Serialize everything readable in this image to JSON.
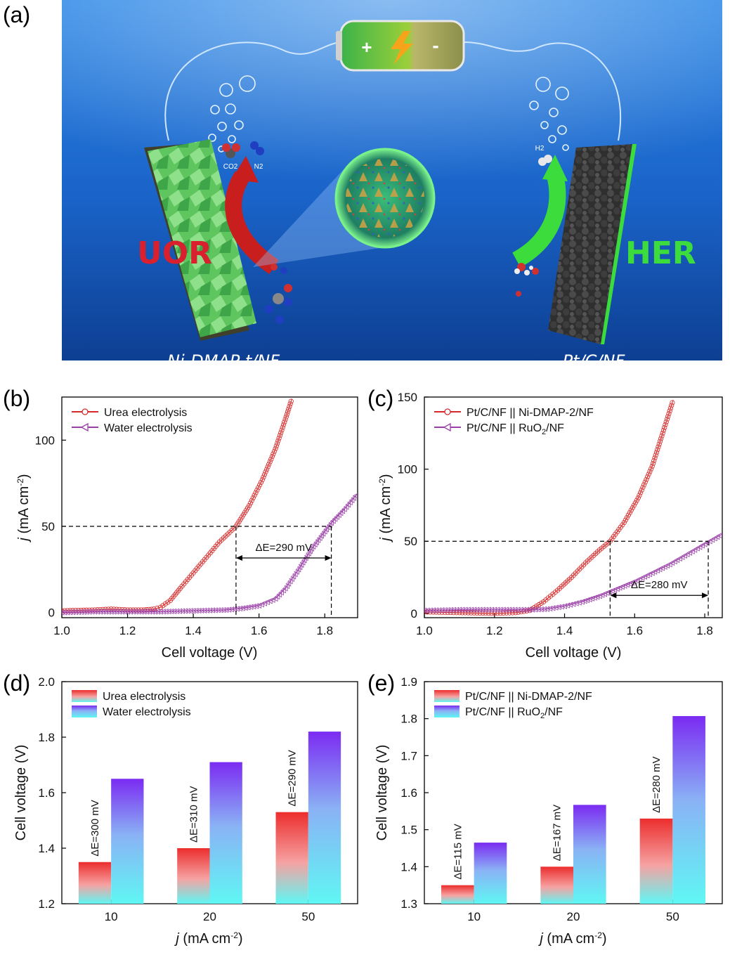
{
  "panel_labels": [
    "(a)",
    "(b)",
    "(c)",
    "(d)",
    "(e)"
  ],
  "scene": {
    "battery_plus": "+",
    "battery_minus": "-",
    "left_process": "UOR",
    "right_process": "HER",
    "left_electrode": "Ni-DMAP-t/NF",
    "right_electrode": "Pt/C/NF",
    "gas_left_1": "CO2",
    "gas_left_2": "N2",
    "gas_right": "H2",
    "colors": {
      "uor": "#d8202f",
      "her": "#3cdc3c",
      "water_top": "#1e6fd0",
      "water_bottom": "#0f4fa8"
    }
  },
  "chart_data": [
    {
      "id": "b",
      "type": "line",
      "xlabel": "Cell voltage (V)",
      "ylabel": "j (mA cm-2)",
      "xlim": [
        1.0,
        1.9
      ],
      "ylim": [
        -3,
        125
      ],
      "xticks": [
        "1.0",
        "1.2",
        "1.4",
        "1.6",
        "1.8"
      ],
      "yticks": [
        "0",
        "50",
        "100"
      ],
      "legend_position": "top-left",
      "series": [
        {
          "name": "Urea electrolysis",
          "color": "#d62a2a",
          "marker": "circle",
          "x": [
            1.0,
            1.1,
            1.15,
            1.2,
            1.25,
            1.28,
            1.3,
            1.33,
            1.36,
            1.4,
            1.44,
            1.48,
            1.53,
            1.57,
            1.61,
            1.65,
            1.68,
            1.7
          ],
          "values": [
            1,
            1.5,
            2,
            1.5,
            1.5,
            2,
            3,
            7,
            14,
            23,
            32,
            41,
            50,
            62,
            77,
            95,
            112,
            124
          ]
        },
        {
          "name": "Water electrolysis",
          "color": "#9a3fa8",
          "marker": "triangle",
          "x": [
            1.0,
            1.1,
            1.2,
            1.3,
            1.4,
            1.5,
            1.55,
            1.6,
            1.65,
            1.68,
            1.72,
            1.76,
            1.8,
            1.82,
            1.86,
            1.9
          ],
          "values": [
            0,
            0.5,
            0.5,
            0.5,
            1,
            1.5,
            2.5,
            4,
            8,
            14,
            25,
            37,
            47,
            52,
            60,
            69
          ]
        }
      ],
      "annotation": {
        "text": "ΔE=290 mV",
        "y": 50,
        "x1": 1.53,
        "x2": 1.82
      }
    },
    {
      "id": "c",
      "type": "line",
      "xlabel": "Cell voltage (V)",
      "ylabel": "j (mA cm-2)",
      "xlim": [
        1.0,
        1.85
      ],
      "ylim": [
        -3,
        150
      ],
      "xticks": [
        "1.0",
        "1.2",
        "1.4",
        "1.6",
        "1.8"
      ],
      "yticks": [
        "0",
        "50",
        "100",
        "150"
      ],
      "legend_position": "top-left",
      "series": [
        {
          "name": "Pt/C/NF || Ni-DMAP-2/NF",
          "color": "#d62a2a",
          "marker": "circle",
          "x": [
            1.0,
            1.1,
            1.2,
            1.26,
            1.3,
            1.34,
            1.38,
            1.42,
            1.46,
            1.5,
            1.53,
            1.57,
            1.61,
            1.65,
            1.68,
            1.71
          ],
          "values": [
            1,
            0.5,
            0,
            0.5,
            2,
            8,
            16,
            25,
            35,
            44,
            50,
            63,
            80,
            102,
            125,
            148
          ]
        },
        {
          "name": "Pt/C/NF || RuO2/NF",
          "color": "#9a3fa8",
          "marker": "triangle",
          "x": [
            1.0,
            1.1,
            1.2,
            1.3,
            1.35,
            1.4,
            1.45,
            1.5,
            1.55,
            1.6,
            1.65,
            1.7,
            1.75,
            1.8,
            1.85
          ],
          "values": [
            2,
            2.5,
            2.5,
            2.5,
            3,
            5,
            8,
            12,
            17,
            22,
            28,
            34,
            41,
            48,
            55
          ]
        }
      ],
      "annotation": {
        "text": "ΔE=280 mV",
        "y": 50,
        "x1": 1.53,
        "x2": 1.81
      }
    },
    {
      "id": "d",
      "type": "bar",
      "xlabel": "j (mA cm-2)",
      "ylabel": "Cell voltage (V)",
      "ylim": [
        1.2,
        2.0
      ],
      "yticks": [
        "1.2",
        "1.4",
        "1.6",
        "1.8",
        "2.0"
      ],
      "categories": [
        "10",
        "20",
        "50"
      ],
      "legend_position": "top-left",
      "series": [
        {
          "name": "Urea electrolysis",
          "values": [
            1.35,
            1.4,
            1.53
          ],
          "color_top": "#ec2d2d",
          "color_bottom": "#5ff7f4"
        },
        {
          "name": "Water electrolysis",
          "values": [
            1.65,
            1.71,
            1.82
          ],
          "color_top": "#7b2bf2",
          "color_bottom": "#5ff7f4"
        }
      ],
      "annotations": [
        "ΔE=300 mV",
        "ΔE=310 mV",
        "ΔE=290 mV"
      ]
    },
    {
      "id": "e",
      "type": "bar",
      "xlabel": "j (mA cm-2)",
      "ylabel": "Cell voltage (V)",
      "ylim": [
        1.3,
        1.9
      ],
      "yticks": [
        "1.3",
        "1.4",
        "1.5",
        "1.6",
        "1.7",
        "1.8",
        "1.9"
      ],
      "categories": [
        "10",
        "20",
        "50"
      ],
      "legend_position": "top-left",
      "series": [
        {
          "name": "Pt/C/NF || Ni-DMAP-2/NF",
          "values": [
            1.35,
            1.4,
            1.53
          ],
          "color_top": "#ec2d2d",
          "color_bottom": "#5ff7f4"
        },
        {
          "name": "Pt/C/NF || RuO2/NF",
          "values": [
            1.465,
            1.567,
            1.807
          ],
          "color_top": "#7b2bf2",
          "color_bottom": "#5ff7f4"
        }
      ],
      "annotations": [
        "ΔE=115 mV",
        "ΔE=167 mV",
        "ΔE=280 mV"
      ]
    }
  ]
}
